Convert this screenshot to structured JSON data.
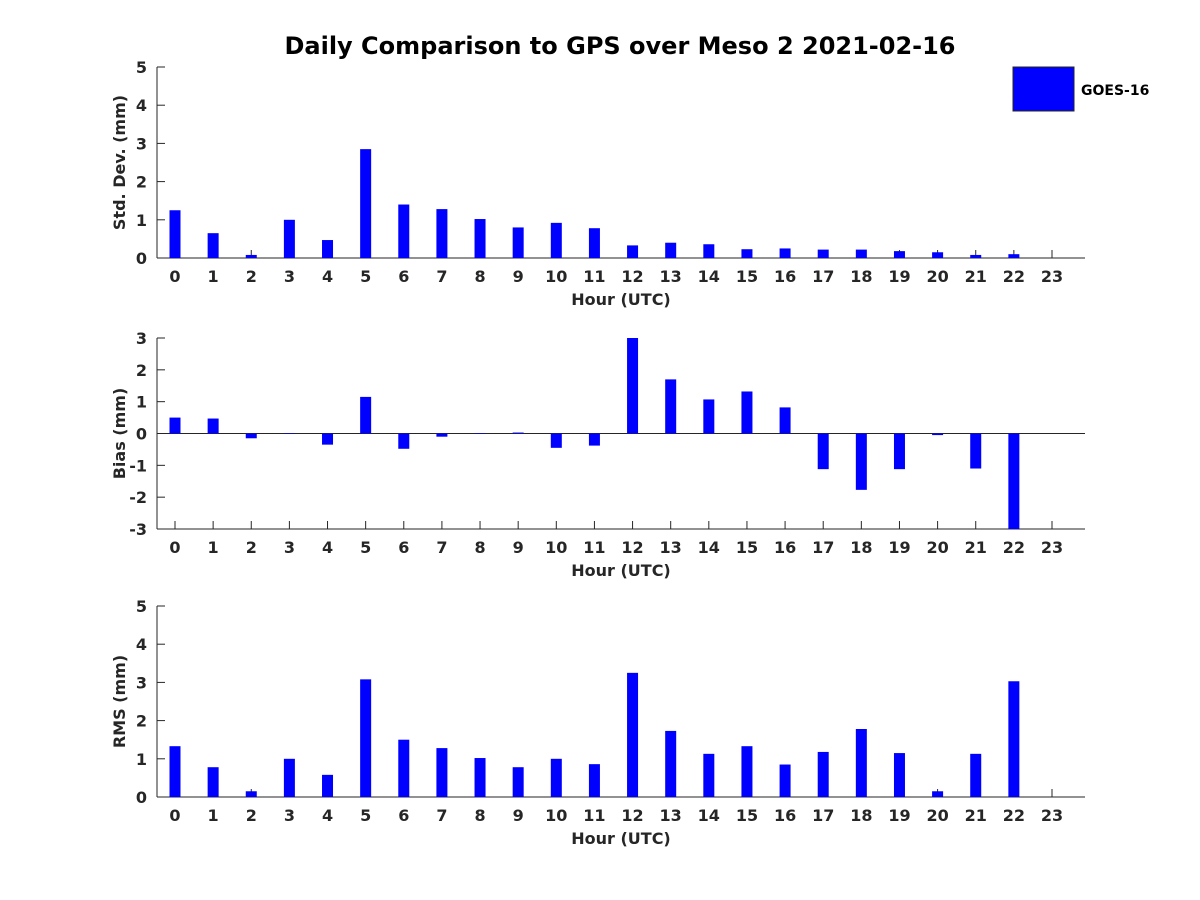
{
  "chart_data": {
    "title": "Daily Comparison to GPS over Meso 2 2021-02-16",
    "legend": {
      "label": "GOES-16",
      "color": "#0000FF",
      "placement": "top-right"
    },
    "categories": [
      "0",
      "1",
      "2",
      "3",
      "4",
      "5",
      "6",
      "7",
      "8",
      "9",
      "10",
      "11",
      "12",
      "13",
      "14",
      "15",
      "16",
      "17",
      "18",
      "19",
      "20",
      "21",
      "22",
      "23"
    ],
    "panels": [
      {
        "type": "bar",
        "series_name": "GOES-16",
        "xlabel": "Hour (UTC)",
        "ylabel": "Std. Dev. (mm)",
        "ylim": [
          0,
          5
        ],
        "yticks": [
          "0",
          "1",
          "2",
          "3",
          "4",
          "5"
        ],
        "values": [
          1.25,
          0.65,
          0.08,
          1.0,
          0.47,
          2.85,
          1.4,
          1.28,
          1.02,
          0.8,
          0.92,
          0.78,
          0.33,
          0.4,
          0.36,
          0.23,
          0.25,
          0.22,
          0.22,
          0.18,
          0.15,
          0.08,
          0.1,
          null
        ]
      },
      {
        "type": "bar",
        "series_name": "GOES-16",
        "xlabel": "Hour (UTC)",
        "ylabel": "Bias (mm)",
        "ylim": [
          -3,
          3
        ],
        "yticks": [
          "-3",
          "-2",
          "-1",
          "0",
          "1",
          "2",
          "3"
        ],
        "values": [
          0.5,
          0.47,
          -0.15,
          0,
          -0.35,
          1.15,
          -0.48,
          -0.1,
          0,
          0.03,
          -0.45,
          -0.38,
          3.0,
          1.7,
          1.07,
          1.32,
          0.82,
          -1.12,
          -1.77,
          -1.12,
          -0.05,
          -1.1,
          -3.0,
          null
        ]
      },
      {
        "type": "bar",
        "series_name": "GOES-16",
        "xlabel": "Hour (UTC)",
        "ylabel": "RMS (mm)",
        "ylim": [
          0,
          5
        ],
        "yticks": [
          "0",
          "1",
          "2",
          "3",
          "4",
          "5"
        ],
        "values": [
          1.33,
          0.78,
          0.15,
          1.0,
          0.58,
          3.08,
          1.5,
          1.28,
          1.02,
          0.78,
          1.0,
          0.86,
          3.25,
          1.73,
          1.13,
          1.33,
          0.85,
          1.18,
          1.78,
          1.15,
          0.15,
          1.13,
          3.03,
          null
        ]
      }
    ]
  }
}
